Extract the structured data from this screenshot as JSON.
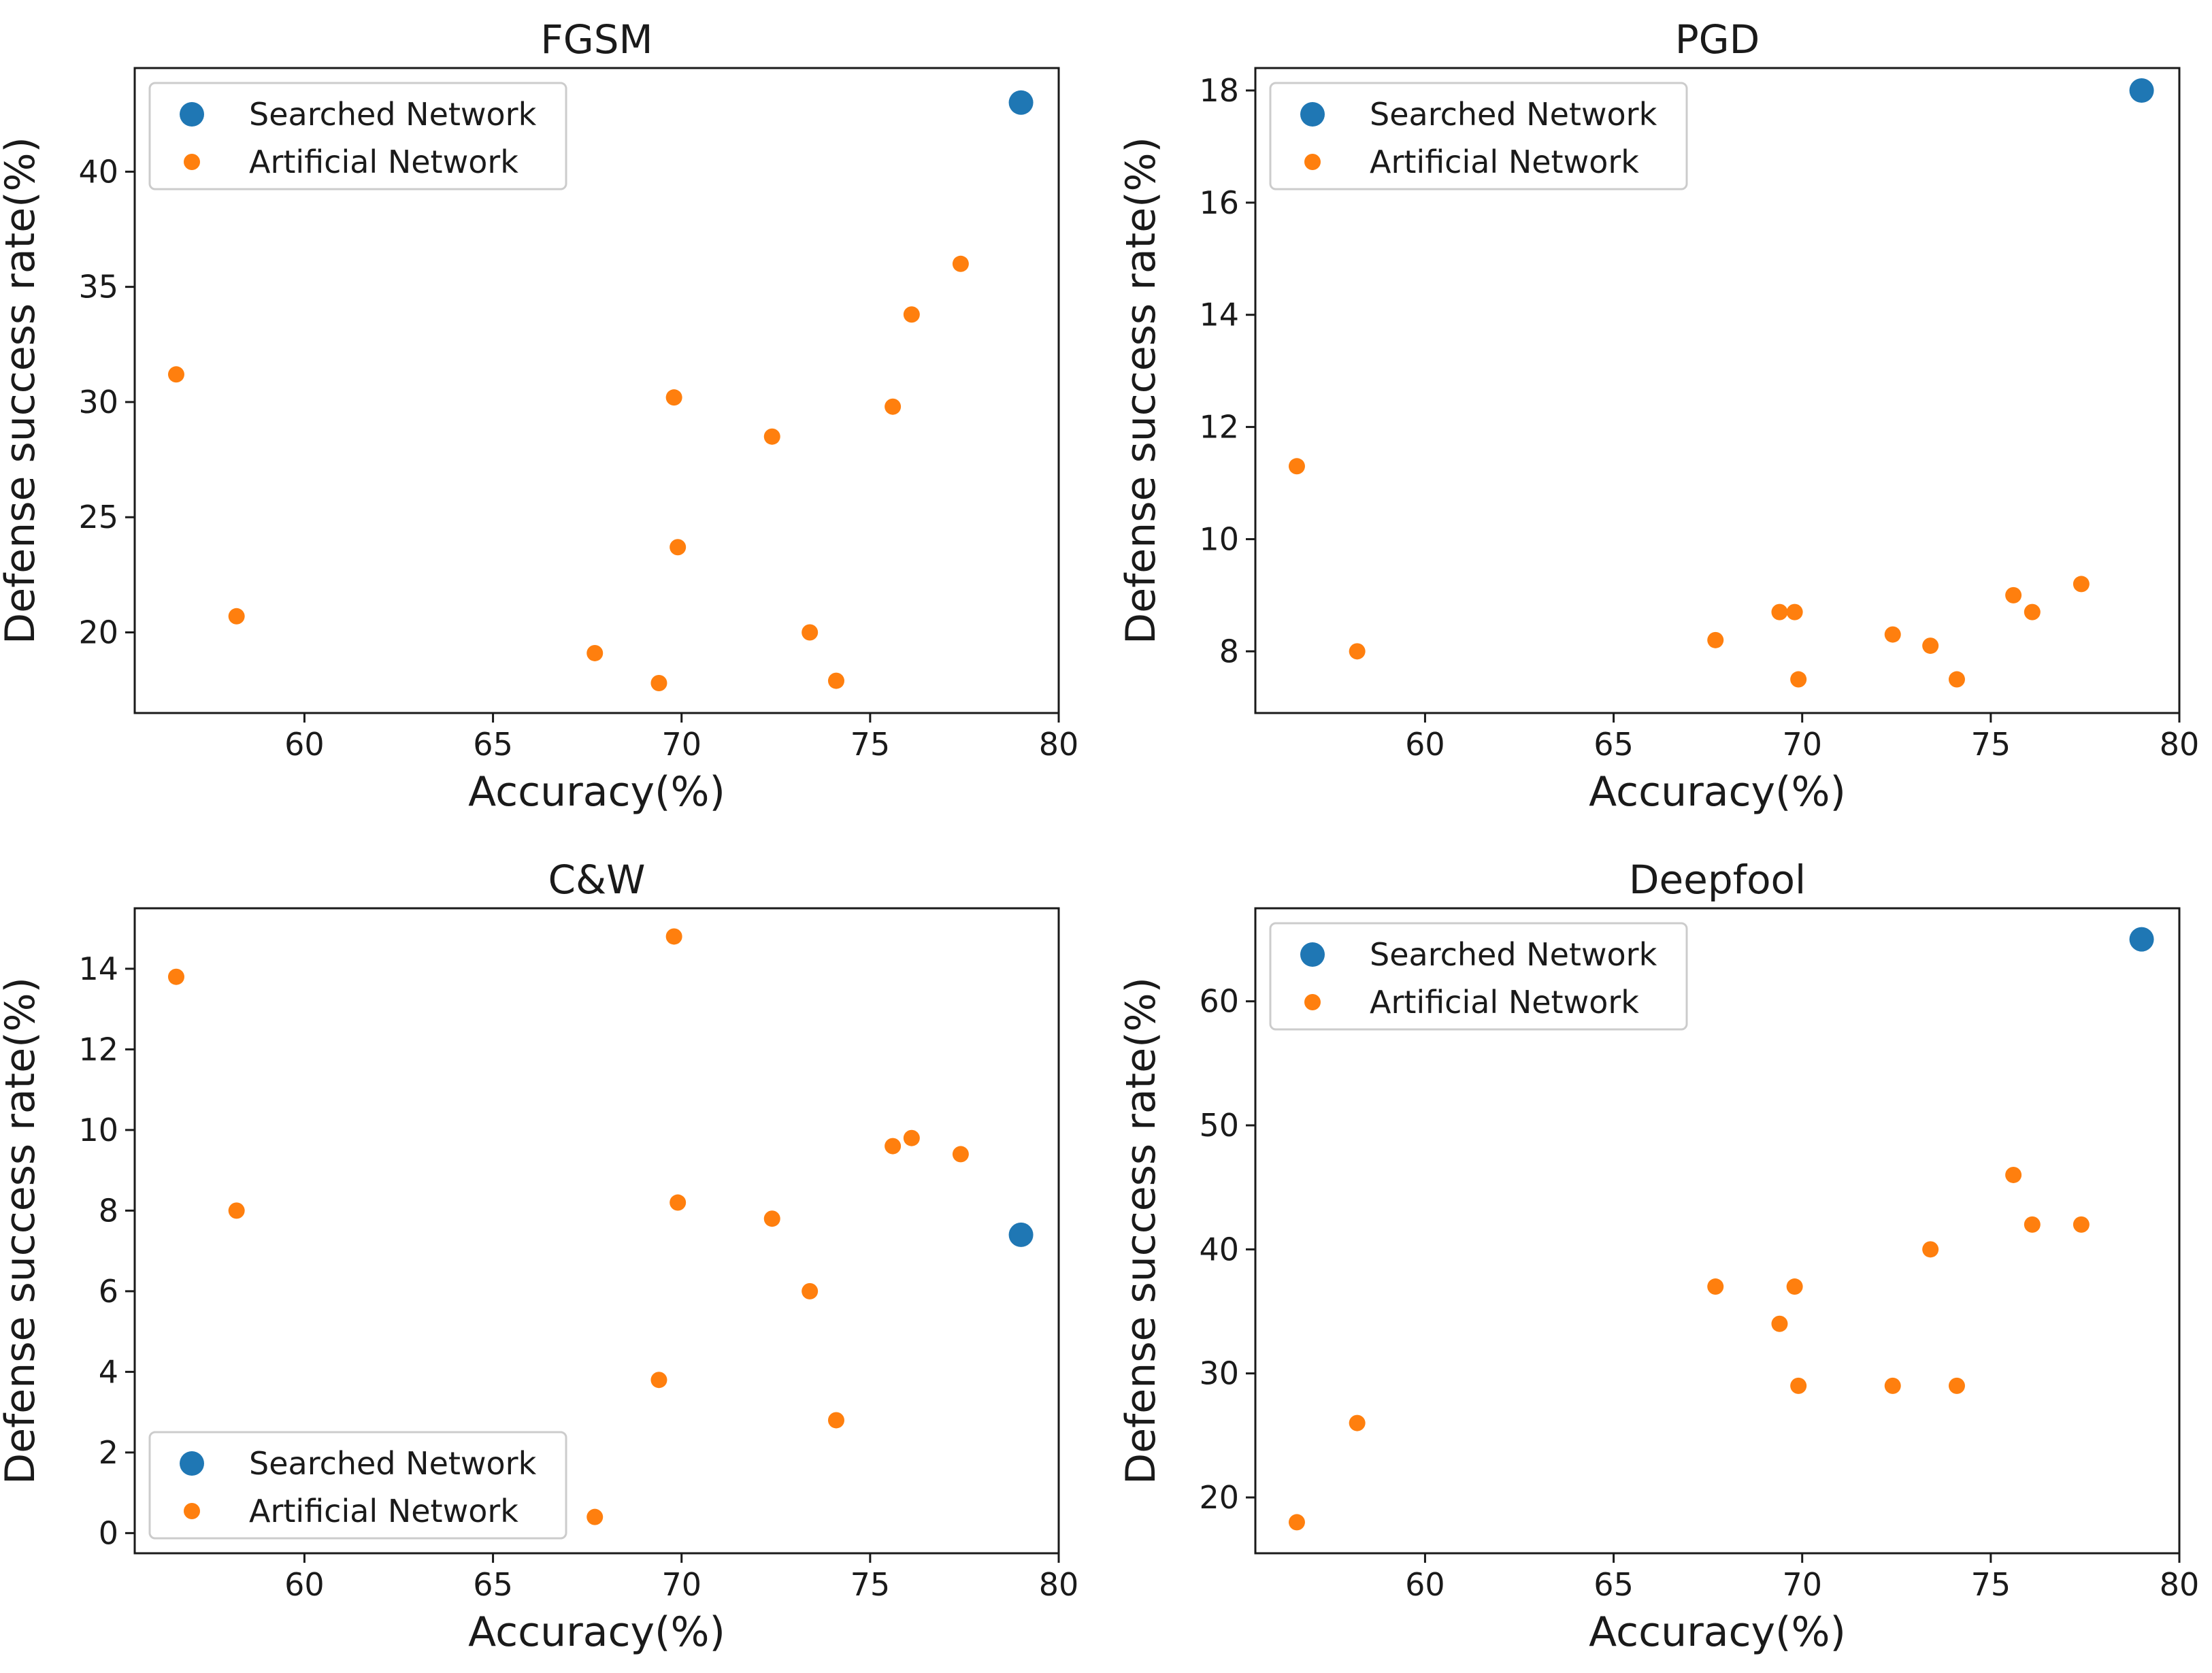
{
  "colors": {
    "searched": "#1f77b4",
    "artificial": "#ff7f0e",
    "axis": "#1a1a1a",
    "legend_border": "#cccccc"
  },
  "chart_data": [
    {
      "type": "scatter",
      "title": "FGSM",
      "xlabel": "Accuracy(%)",
      "ylabel": "Defense success rate(%)",
      "xlim": [
        55.5,
        80
      ],
      "ylim": [
        16.5,
        44.5
      ],
      "xticks": [
        60,
        65,
        70,
        75,
        80
      ],
      "yticks": [
        20,
        25,
        30,
        35,
        40
      ],
      "grid": false,
      "legend_position": "upper-left",
      "series": [
        {
          "name": "Searched Network",
          "x": [
            79
          ],
          "y": [
            43
          ]
        },
        {
          "name": "Artificial Network",
          "x": [
            56.6,
            58.2,
            67.7,
            69.4,
            69.8,
            69.9,
            72.4,
            73.4,
            74.1,
            75.6,
            76.1,
            77.4
          ],
          "y": [
            31.2,
            20.7,
            19.1,
            17.8,
            30.2,
            23.7,
            28.5,
            20.0,
            17.9,
            29.8,
            33.8,
            36.0
          ]
        }
      ]
    },
    {
      "type": "scatter",
      "title": "PGD",
      "xlabel": "Accuracy(%)",
      "ylabel": "Defense success rate(%)",
      "xlim": [
        55.5,
        80
      ],
      "ylim": [
        6.9,
        18.4
      ],
      "xticks": [
        60,
        65,
        70,
        75,
        80
      ],
      "yticks": [
        8,
        10,
        12,
        14,
        16,
        18
      ],
      "grid": false,
      "legend_position": "upper-left",
      "series": [
        {
          "name": "Searched Network",
          "x": [
            79
          ],
          "y": [
            18.0
          ]
        },
        {
          "name": "Artificial Network",
          "x": [
            56.6,
            58.2,
            67.7,
            69.4,
            69.8,
            69.9,
            72.4,
            73.4,
            74.1,
            75.6,
            76.1,
            77.4
          ],
          "y": [
            11.3,
            8.0,
            8.2,
            8.7,
            8.7,
            7.5,
            8.3,
            8.1,
            7.5,
            9.0,
            8.7,
            9.2
          ]
        }
      ]
    },
    {
      "type": "scatter",
      "title": "C&W",
      "xlabel": "Accuracy(%)",
      "ylabel": "Defense success rate(%)",
      "xlim": [
        55.5,
        80
      ],
      "ylim": [
        -0.5,
        15.5
      ],
      "xticks": [
        60,
        65,
        70,
        75,
        80
      ],
      "yticks": [
        0,
        2,
        4,
        6,
        8,
        10,
        12,
        14
      ],
      "grid": false,
      "legend_position": "lower-left",
      "series": [
        {
          "name": "Searched Network",
          "x": [
            79
          ],
          "y": [
            7.4
          ]
        },
        {
          "name": "Artificial Network",
          "x": [
            56.6,
            58.2,
            67.7,
            69.4,
            69.8,
            69.9,
            72.4,
            73.4,
            74.1,
            75.6,
            76.1,
            77.4
          ],
          "y": [
            13.8,
            8.0,
            0.4,
            3.8,
            14.8,
            8.2,
            7.8,
            6.0,
            2.8,
            9.6,
            9.8,
            9.4
          ]
        }
      ]
    },
    {
      "type": "scatter",
      "title": "Deepfool",
      "xlabel": "Accuracy(%)",
      "ylabel": "Defense success rate(%)",
      "xlim": [
        55.5,
        80
      ],
      "ylim": [
        15.5,
        67.5
      ],
      "xticks": [
        60,
        65,
        70,
        75,
        80
      ],
      "yticks": [
        20,
        30,
        40,
        50,
        60
      ],
      "grid": false,
      "legend_position": "upper-left",
      "series": [
        {
          "name": "Searched Network",
          "x": [
            79
          ],
          "y": [
            65
          ]
        },
        {
          "name": "Artificial Network",
          "x": [
            56.6,
            58.2,
            67.7,
            69.4,
            69.8,
            69.9,
            72.4,
            73.4,
            74.1,
            75.6,
            76.1,
            77.4
          ],
          "y": [
            18,
            26,
            37,
            34,
            37,
            29,
            29,
            40,
            29,
            46,
            42,
            42
          ]
        }
      ]
    }
  ]
}
